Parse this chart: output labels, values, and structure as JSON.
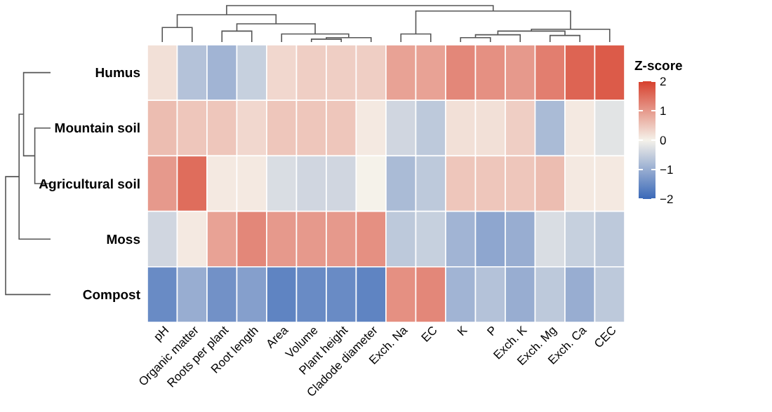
{
  "chart_data": {
    "type": "heatmap",
    "clabel": "Z-score",
    "categories": [
      "pH",
      "Organic matter",
      "Roots per plant",
      "Root length",
      "Area",
      "Volume",
      "Plant height",
      "Cladode diameter",
      "Exch. Na",
      "EC",
      "K",
      "P",
      "Exch. K",
      "Exch. Mg",
      "Exch. Ca",
      "CEC"
    ],
    "y_categories": [
      "Humus",
      "Mountain soil",
      "Agricultural soil",
      "Moss",
      "Compost"
    ],
    "cells": [
      [
        0.2,
        -0.7,
        -0.9,
        -0.5,
        0.3,
        0.4,
        0.4,
        0.4,
        0.9,
        0.9,
        1.2,
        1.1,
        1.0,
        1.3,
        1.6,
        1.7
      ],
      [
        0.6,
        0.5,
        0.5,
        0.3,
        0.5,
        0.5,
        0.5,
        0.1,
        -0.4,
        -0.6,
        0.2,
        0.2,
        0.4,
        -0.8,
        0.1,
        -0.2
      ],
      [
        1.0,
        1.5,
        0.1,
        0.1,
        -0.3,
        -0.4,
        -0.4,
        0.0,
        -0.8,
        -0.6,
        0.5,
        0.5,
        0.5,
        0.6,
        0.1,
        0.1
      ],
      [
        -0.4,
        0.1,
        0.9,
        1.2,
        1.0,
        1.0,
        1.0,
        1.1,
        -0.6,
        -0.5,
        -0.9,
        -1.1,
        -1.0,
        -0.3,
        -0.5,
        -0.6
      ],
      [
        -1.5,
        -1.0,
        -1.4,
        -1.2,
        -1.6,
        -1.5,
        -1.5,
        -1.6,
        1.1,
        1.2,
        -0.9,
        -0.7,
        -1.0,
        -0.6,
        -1.0,
        -0.6
      ]
    ],
    "clim": [
      -2,
      2
    ],
    "cticks": [
      2,
      1,
      0,
      {
        "value": -1,
        "label": "−1"
      },
      {
        "value": -2,
        "label": "−2"
      }
    ]
  }
}
